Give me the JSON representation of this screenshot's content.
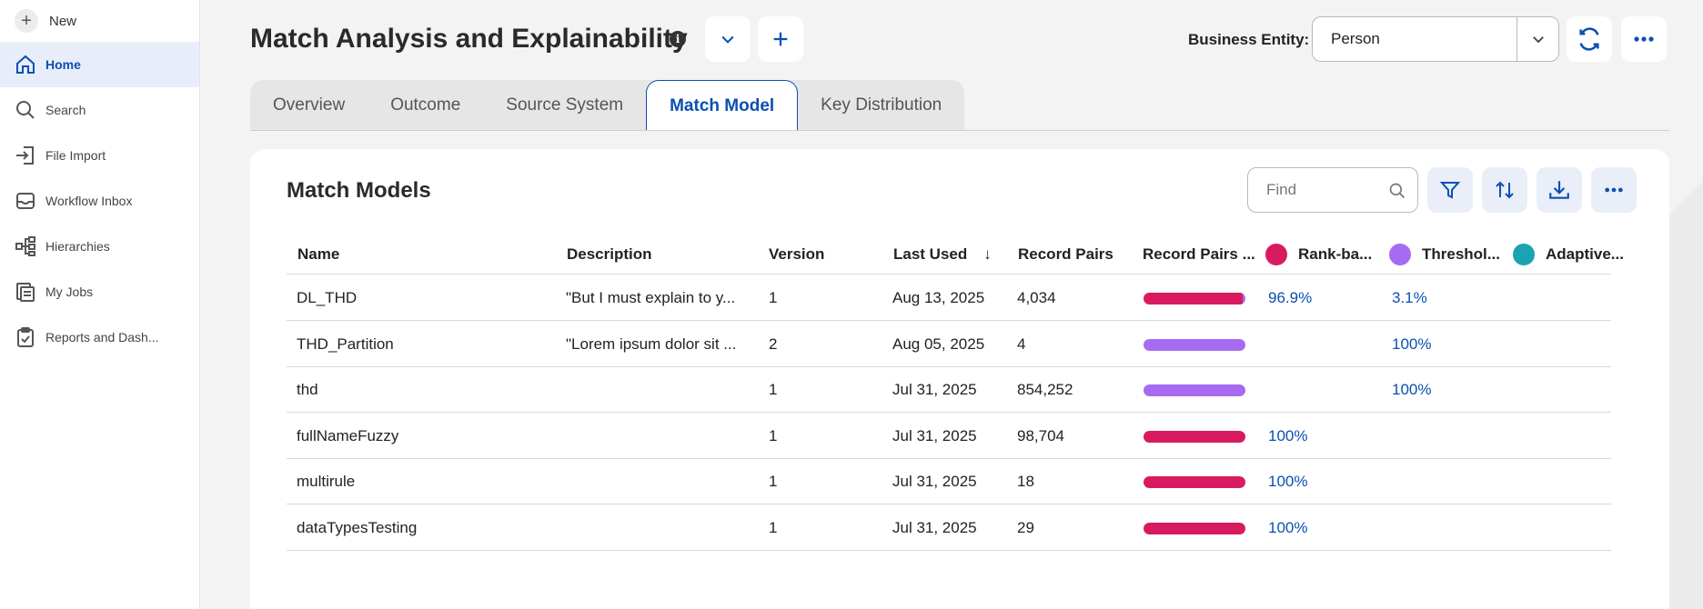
{
  "sidebar": {
    "new_label": "New",
    "items": [
      {
        "label": "Home",
        "icon": "home-icon",
        "active": true
      },
      {
        "label": "Search",
        "icon": "search-icon",
        "active": false
      },
      {
        "label": "File Import",
        "icon": "file-import-icon",
        "active": false
      },
      {
        "label": "Workflow Inbox",
        "icon": "inbox-icon",
        "active": false
      },
      {
        "label": "Hierarchies",
        "icon": "hierarchy-icon",
        "active": false
      },
      {
        "label": "My Jobs",
        "icon": "jobs-icon",
        "active": false
      },
      {
        "label": "Reports and Dash...",
        "icon": "reports-icon",
        "active": false
      }
    ]
  },
  "header": {
    "title": "Match Analysis and Explainability",
    "info_icon": "i",
    "entity_label": "Business Entity:",
    "entity_value": "Person"
  },
  "tabs": [
    {
      "label": "Overview",
      "active": false
    },
    {
      "label": "Outcome",
      "active": false
    },
    {
      "label": "Source System",
      "active": false
    },
    {
      "label": "Match Model",
      "active": true
    },
    {
      "label": "Key Distribution",
      "active": false
    }
  ],
  "panel": {
    "title": "Match Models",
    "find_placeholder": "Find"
  },
  "colors": {
    "rank": "#d81b60",
    "threshold": "#a66bf2",
    "adaptive": "#1aa3b0",
    "accent": "#0b4fb3"
  },
  "table": {
    "columns": {
      "name": "Name",
      "description": "Description",
      "version": "Version",
      "last_used": "Last Used",
      "sort_icon": "↓",
      "record_pairs": "Record Pairs",
      "record_pairs_bar": "Record Pairs ...",
      "rank": "Rank-ba...",
      "threshold": "Threshol...",
      "adaptive": "Adaptive..."
    },
    "rows": [
      {
        "name": "DL_THD",
        "description": "\"But I must explain to y...",
        "version": "1",
        "last_used": "Aug 13, 2025",
        "record_pairs": "4,034",
        "rank_pct": "96.9%",
        "threshold_pct": "3.1%",
        "rank_frac": 0.969,
        "threshold_frac": 0.031
      },
      {
        "name": "THD_Partition",
        "description": "\"Lorem ipsum dolor sit ...",
        "version": "2",
        "last_used": "Aug 05, 2025",
        "record_pairs": "4",
        "rank_pct": "",
        "threshold_pct": "100%",
        "rank_frac": 0,
        "threshold_frac": 1
      },
      {
        "name": "thd",
        "description": "",
        "version": "1",
        "last_used": "Jul 31, 2025",
        "record_pairs": "854,252",
        "rank_pct": "",
        "threshold_pct": "100%",
        "rank_frac": 0,
        "threshold_frac": 1
      },
      {
        "name": "fullNameFuzzy",
        "description": "",
        "version": "1",
        "last_used": "Jul 31, 2025",
        "record_pairs": "98,704",
        "rank_pct": "100%",
        "threshold_pct": "",
        "rank_frac": 1,
        "threshold_frac": 0
      },
      {
        "name": "multirule",
        "description": "",
        "version": "1",
        "last_used": "Jul 31, 2025",
        "record_pairs": "18",
        "rank_pct": "100%",
        "threshold_pct": "",
        "rank_frac": 1,
        "threshold_frac": 0
      },
      {
        "name": "dataTypesTesting",
        "description": "",
        "version": "1",
        "last_used": "Jul 31, 2025",
        "record_pairs": "29",
        "rank_pct": "100%",
        "threshold_pct": "",
        "rank_frac": 1,
        "threshold_frac": 0
      }
    ]
  }
}
